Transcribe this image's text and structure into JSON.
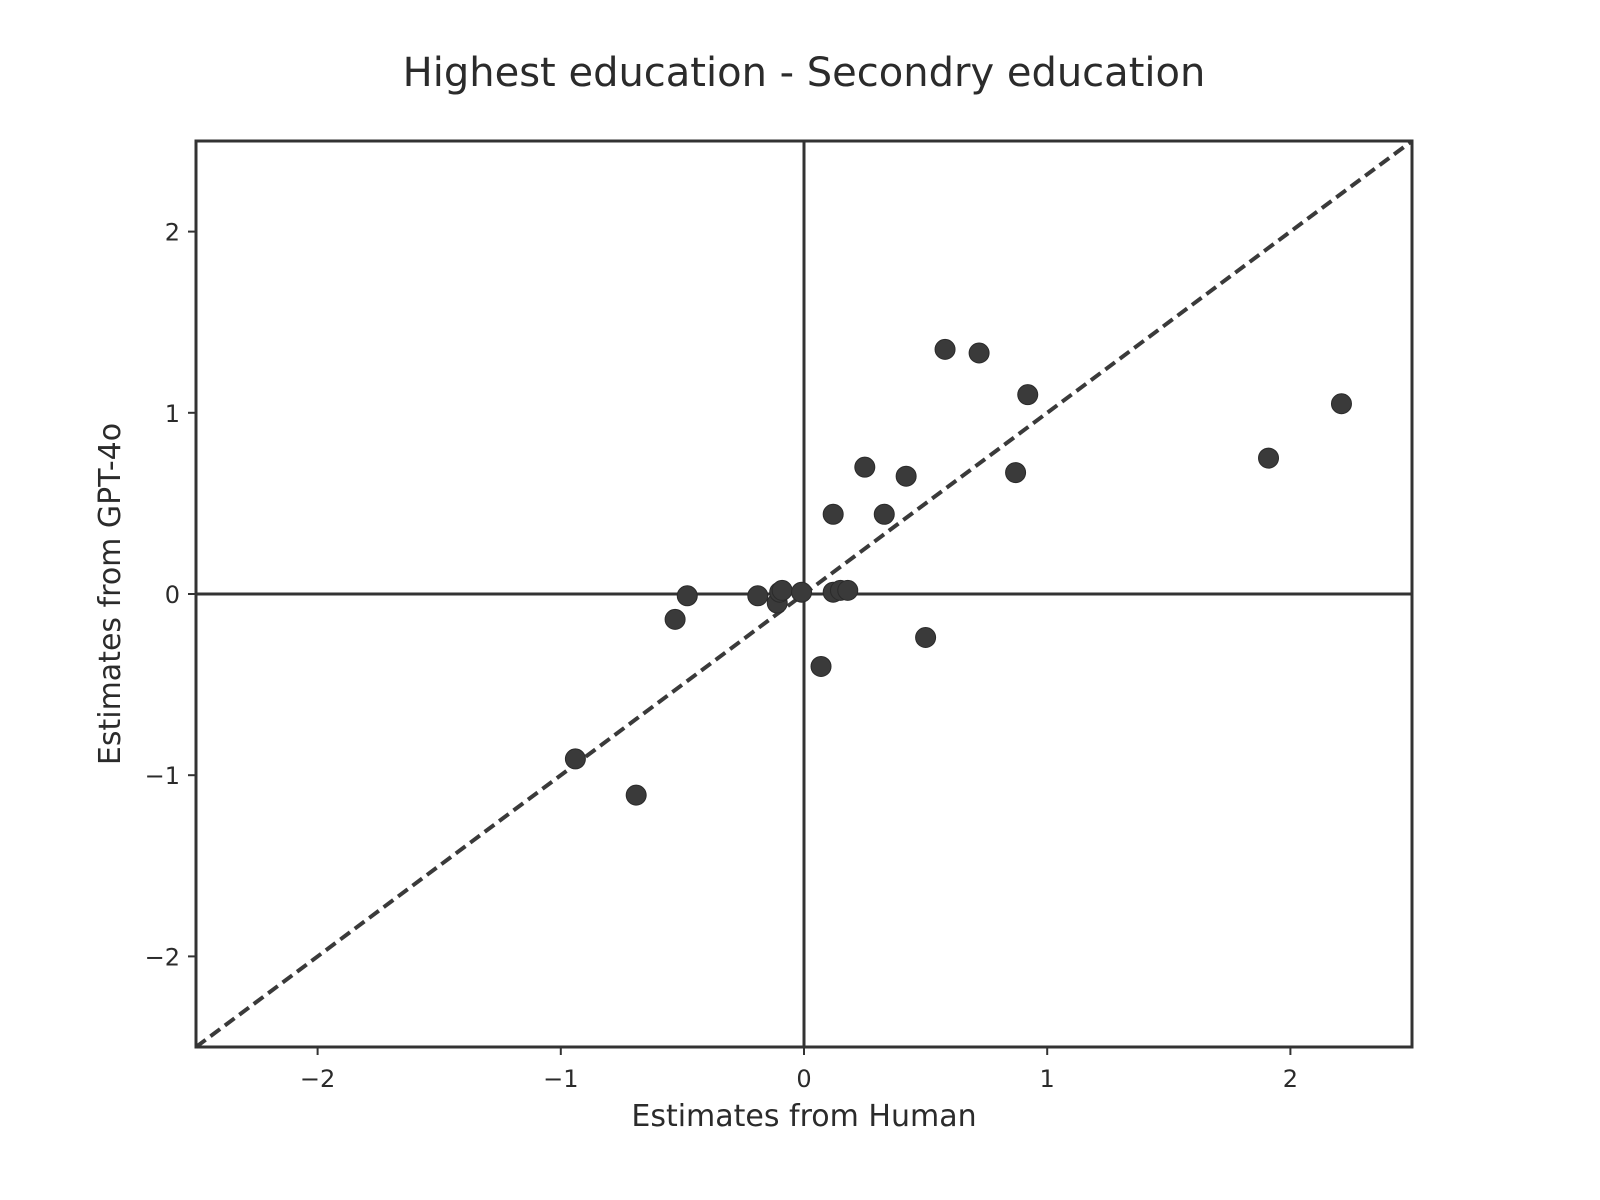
{
  "chart_data": {
    "type": "scatter",
    "title": "Highest education - Secondry education",
    "xlabel": "Estimates from Human",
    "ylabel": "Estimates from GPT-4o",
    "xlim": [
      -2.5,
      2.5
    ],
    "ylim": [
      -2.5,
      2.5
    ],
    "xticks": [
      -2,
      -1,
      0,
      1,
      2
    ],
    "yticks": [
      -2,
      -1,
      0,
      1,
      2
    ],
    "xtick_labels": [
      "−2",
      "−1",
      "0",
      "1",
      "2"
    ],
    "ytick_labels": [
      "−2",
      "−1",
      "0",
      "1",
      "2"
    ],
    "grid": false,
    "reference_lines": [
      "x = 0",
      "y = 0",
      "y = x (dashed)"
    ],
    "colors": {
      "points": "#3a3a3a",
      "lines": "#333333"
    },
    "points": [
      {
        "x": -0.94,
        "y": -0.91
      },
      {
        "x": -0.69,
        "y": -1.11
      },
      {
        "x": -0.53,
        "y": -0.14
      },
      {
        "x": -0.48,
        "y": -0.01
      },
      {
        "x": -0.19,
        "y": -0.01
      },
      {
        "x": -0.11,
        "y": -0.05
      },
      {
        "x": -0.1,
        "y": 0.01
      },
      {
        "x": -0.09,
        "y": 0.02
      },
      {
        "x": -0.01,
        "y": 0.01
      },
      {
        "x": 0.07,
        "y": -0.4
      },
      {
        "x": 0.12,
        "y": 0.44
      },
      {
        "x": 0.12,
        "y": 0.01
      },
      {
        "x": 0.15,
        "y": 0.02
      },
      {
        "x": 0.18,
        "y": 0.02
      },
      {
        "x": 0.25,
        "y": 0.7
      },
      {
        "x": 0.33,
        "y": 0.44
      },
      {
        "x": 0.42,
        "y": 0.65
      },
      {
        "x": 0.5,
        "y": -0.24
      },
      {
        "x": 0.58,
        "y": 1.35
      },
      {
        "x": 0.72,
        "y": 1.33
      },
      {
        "x": 0.87,
        "y": 0.67
      },
      {
        "x": 0.92,
        "y": 1.1
      },
      {
        "x": 1.91,
        "y": 0.75
      },
      {
        "x": 2.21,
        "y": 1.05
      }
    ]
  }
}
